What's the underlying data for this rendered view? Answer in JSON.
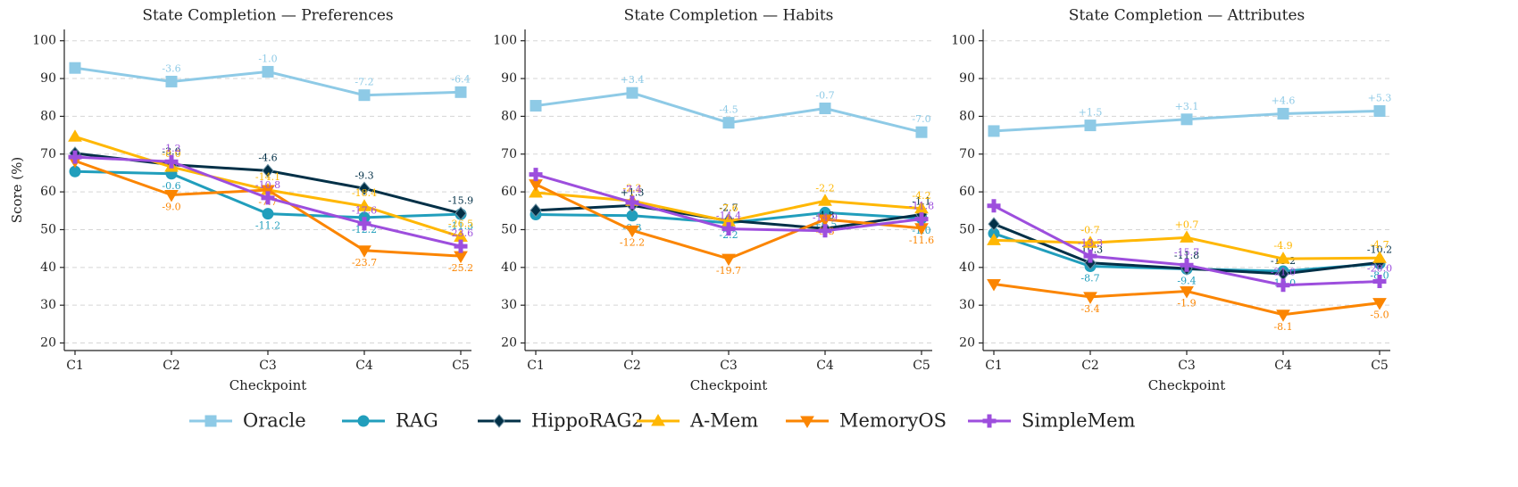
{
  "chart_data": [
    {
      "type": "line",
      "title": "State Completion — Preferences",
      "xlabel": "Checkpoint",
      "ylabel": "Score (%)",
      "categories": [
        "C1",
        "C2",
        "C3",
        "C4",
        "C5"
      ],
      "ylim": [
        18,
        103
      ],
      "yticks": [
        20,
        30,
        40,
        50,
        60,
        70,
        80,
        90,
        100
      ],
      "grid": true,
      "series": [
        {
          "name": "Oracle",
          "color": "#8ecae6",
          "marker": "square",
          "values": [
            92.8,
            89.2,
            91.8,
            85.6,
            86.4
          ],
          "delta_labels": [
            null,
            "-3.6",
            "-1.0",
            "-7.2",
            "-6.4"
          ]
        },
        {
          "name": "RAG",
          "color": "#219ebc",
          "marker": "circle",
          "values": [
            65.4,
            64.8,
            54.2,
            53.2,
            54.1
          ],
          "delta_labels": [
            null,
            "-0.6",
            "-11.2",
            "-12.2",
            "-11.3"
          ]
        },
        {
          "name": "HippoRAG2",
          "color": "#023047",
          "marker": "diamond",
          "values": [
            70.2,
            67.2,
            65.6,
            60.9,
            54.3
          ],
          "delta_labels": [
            null,
            "-3.0",
            "-4.6",
            "-9.3",
            "-15.9"
          ]
        },
        {
          "name": "A-Mem",
          "color": "#ffb703",
          "marker": "triangle-up",
          "values": [
            74.6,
            66.6,
            60.5,
            56.2,
            48.1
          ],
          "delta_labels": [
            null,
            "-8.0",
            "-14.1",
            "-18.4",
            "-26.5"
          ]
        },
        {
          "name": "MemoryOS",
          "color": "#fb8500",
          "marker": "triangle-down",
          "values": [
            68.2,
            59.2,
            60.5,
            44.5,
            43.0
          ],
          "delta_labels": [
            null,
            "-9.0",
            "-7.7",
            "-23.7",
            "-25.2"
          ]
        },
        {
          "name": "SimpleMem",
          "color": "#9d4edd",
          "marker": "plus",
          "values": [
            69.2,
            68.0,
            58.4,
            51.6,
            45.6
          ],
          "delta_labels": [
            null,
            "-1.2",
            "-10.8",
            "-17.6",
            "-23.6"
          ]
        }
      ]
    },
    {
      "type": "line",
      "title": "State Completion — Habits",
      "xlabel": "Checkpoint",
      "categories": [
        "C1",
        "C2",
        "C3",
        "C4",
        "C5"
      ],
      "ylim": [
        18,
        103
      ],
      "yticks": [
        20,
        30,
        40,
        50,
        60,
        70,
        80,
        90,
        100
      ],
      "grid": true,
      "series": [
        {
          "name": "Oracle",
          "color": "#8ecae6",
          "marker": "square",
          "values": [
            82.8,
            86.2,
            78.3,
            82.1,
            75.8
          ],
          "delta_labels": [
            null,
            "+3.4",
            "-4.5",
            "-0.7",
            "-7.0"
          ]
        },
        {
          "name": "RAG",
          "color": "#219ebc",
          "marker": "circle",
          "values": [
            54.0,
            53.7,
            51.8,
            54.5,
            53.0
          ],
          "delta_labels": [
            null,
            "-0.3",
            "-2.2",
            "+0.5",
            "-1.0"
          ]
        },
        {
          "name": "HippoRAG2",
          "color": "#023047",
          "marker": "diamond",
          "values": [
            55.1,
            56.4,
            52.4,
            50.3,
            54.0
          ],
          "delta_labels": [
            null,
            "+1.3",
            "-2.7",
            "-4.8",
            "-1.1"
          ]
        },
        {
          "name": "A-Mem",
          "color": "#ffb703",
          "marker": "triangle-up",
          "values": [
            59.8,
            57.6,
            52.2,
            57.6,
            55.6
          ],
          "delta_labels": [
            null,
            "-2.2",
            "-7.6",
            "-2.2",
            "-4.2"
          ]
        },
        {
          "name": "MemoryOS",
          "color": "#fb8500",
          "marker": "triangle-down",
          "values": [
            62.0,
            49.8,
            42.3,
            52.7,
            50.4
          ],
          "delta_labels": [
            null,
            "-12.2",
            "-19.7",
            "-9.3",
            "-11.6"
          ]
        },
        {
          "name": "SimpleMem",
          "color": "#9d4edd",
          "marker": "plus",
          "values": [
            64.6,
            57.2,
            50.2,
            49.7,
            52.8
          ],
          "delta_labels": [
            null,
            "-7.4",
            "-14.4",
            "-14.9",
            "-11.8"
          ]
        }
      ]
    },
    {
      "type": "line",
      "title": "State Completion — Attributes",
      "xlabel": "Checkpoint",
      "categories": [
        "C1",
        "C2",
        "C3",
        "C4",
        "C5"
      ],
      "ylim": [
        18,
        103
      ],
      "yticks": [
        20,
        30,
        40,
        50,
        60,
        70,
        80,
        90,
        100
      ],
      "grid": true,
      "series": [
        {
          "name": "Oracle",
          "color": "#8ecae6",
          "marker": "square",
          "values": [
            76.1,
            77.6,
            79.2,
            80.7,
            81.4
          ],
          "delta_labels": [
            null,
            "+1.5",
            "+3.1",
            "+4.6",
            "+5.3"
          ]
        },
        {
          "name": "RAG",
          "color": "#219ebc",
          "marker": "circle",
          "values": [
            49.0,
            40.3,
            39.6,
            39.0,
            41.0
          ],
          "delta_labels": [
            null,
            "-8.7",
            "-9.4",
            "-10.0",
            "-8.0"
          ]
        },
        {
          "name": "HippoRAG2",
          "color": "#023047",
          "marker": "diamond",
          "values": [
            51.5,
            41.2,
            39.7,
            38.3,
            41.3
          ],
          "delta_labels": [
            null,
            "-10.3",
            "-11.8",
            "-13.2",
            "-10.2"
          ]
        },
        {
          "name": "A-Mem",
          "color": "#ffb703",
          "marker": "triangle-up",
          "values": [
            47.2,
            46.5,
            47.9,
            42.3,
            42.5
          ],
          "delta_labels": [
            null,
            "-0.7",
            "+0.7",
            "-4.9",
            "-4.7"
          ]
        },
        {
          "name": "MemoryOS",
          "color": "#fb8500",
          "marker": "triangle-down",
          "values": [
            35.6,
            32.2,
            33.7,
            27.5,
            30.6
          ],
          "delta_labels": [
            null,
            "-3.4",
            "-1.9",
            "-8.1",
            "-5.0"
          ]
        },
        {
          "name": "SimpleMem",
          "color": "#9d4edd",
          "marker": "plus",
          "values": [
            56.3,
            43.0,
            40.6,
            35.3,
            36.3
          ],
          "delta_labels": [
            null,
            "-13.3",
            "-15.7",
            "-21.0",
            "-20.0"
          ]
        }
      ]
    }
  ]
}
